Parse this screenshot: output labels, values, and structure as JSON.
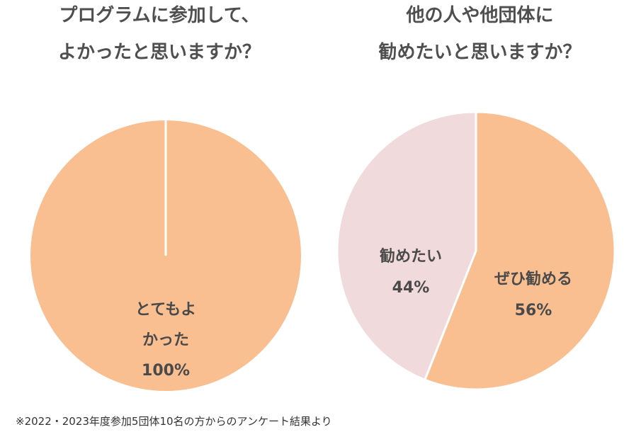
{
  "colors": {
    "orange": "#f9bf91",
    "pink": "#f0dadb",
    "divider": "#ffffff",
    "text": "#4a4a4a"
  },
  "chart_data": [
    {
      "type": "pie",
      "title_lines": [
        "プログラムに参加して、",
        "よかったと思いますか？"
      ],
      "slices": [
        {
          "label_lines": [
            "とてもよ",
            "かった"
          ],
          "value": 100,
          "value_label": "100%",
          "color": "#f9bf91"
        }
      ]
    },
    {
      "type": "pie",
      "title_lines": [
        "他の人や他団体に",
        "勧めたいと思いますか？"
      ],
      "slices": [
        {
          "label_lines": [
            "ぜひ勧める"
          ],
          "value": 56,
          "value_label": "56%",
          "color": "#f9bf91"
        },
        {
          "label_lines": [
            "勧めたい"
          ],
          "value": 44,
          "value_label": "44%",
          "color": "#f0dadb"
        }
      ]
    }
  ],
  "footnote": "※2022・2023年度参加5団体10名の方からのアンケート結果より"
}
